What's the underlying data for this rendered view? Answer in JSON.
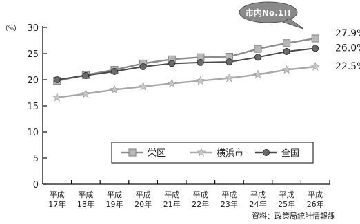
{
  "chart_data": {
    "type": "line",
    "y_unit": "(%)",
    "ylim": [
      0,
      30
    ],
    "yticks": [
      0,
      5,
      10,
      15,
      20,
      25,
      30
    ],
    "categories": [
      [
        "平成",
        "17年"
      ],
      [
        "平成",
        "18年"
      ],
      [
        "平成",
        "19年"
      ],
      [
        "平成",
        "20年"
      ],
      [
        "平成",
        "21年"
      ],
      [
        "平成",
        "22年"
      ],
      [
        "平成",
        "23年"
      ],
      [
        "平成",
        "24年"
      ],
      [
        "平成",
        "25年"
      ],
      [
        "平成",
        "26年"
      ]
    ],
    "series": [
      {
        "name": "栄区",
        "marker": "square",
        "color": "#8c8c8c",
        "values": [
          19.8,
          20.9,
          21.9,
          23.1,
          23.9,
          24.3,
          24.4,
          25.9,
          27.0,
          27.9
        ],
        "end_label": "27.9%"
      },
      {
        "name": "横浜市",
        "marker": "star",
        "color": "#a8a8a8",
        "values": [
          16.6,
          17.3,
          18.1,
          18.7,
          19.3,
          19.8,
          20.3,
          21.0,
          21.9,
          22.5
        ],
        "end_label": "22.5%"
      },
      {
        "name": "全国",
        "marker": "circle",
        "color": "#4a4a4a",
        "values": [
          20.0,
          20.8,
          21.6,
          22.5,
          23.1,
          23.3,
          23.4,
          24.3,
          25.4,
          26.0
        ],
        "end_label": "26.0%"
      }
    ],
    "grid": false,
    "legend_position": "bottom-right",
    "callout": "市内No.1!!",
    "source": "資料：政策局統計情報課"
  }
}
